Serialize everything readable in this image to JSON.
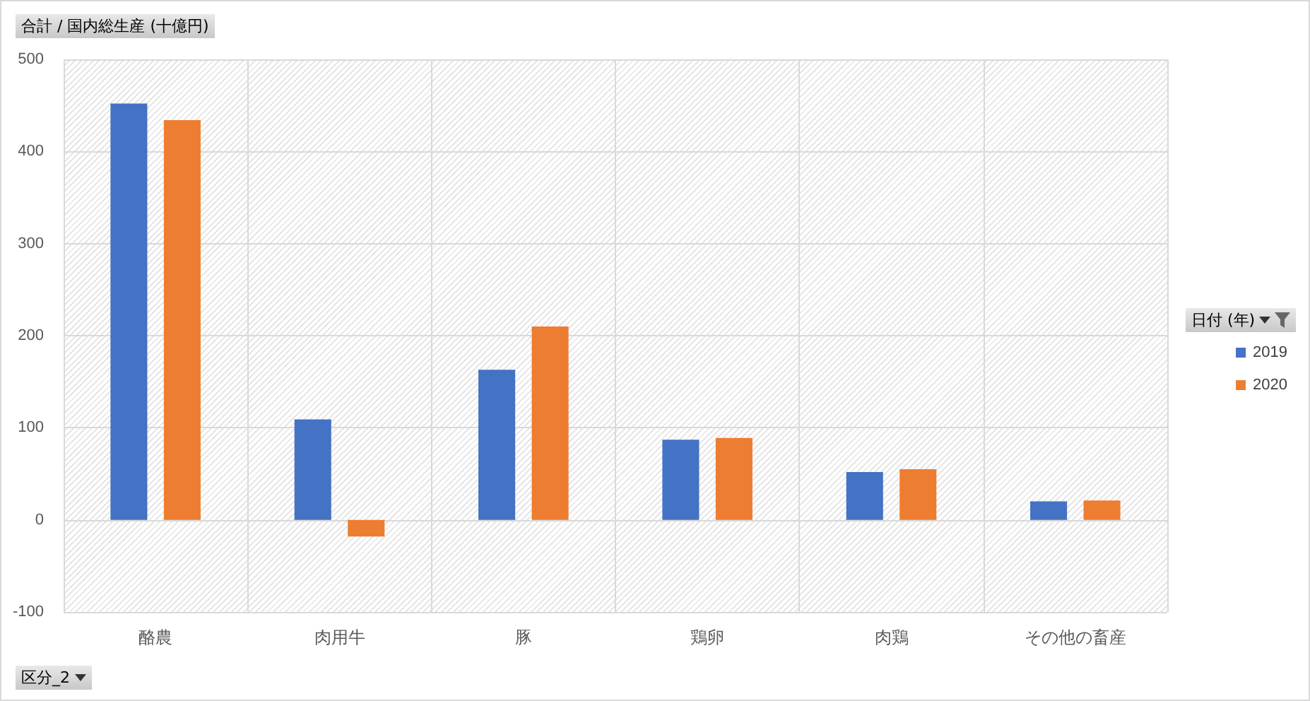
{
  "chart_data": {
    "type": "bar",
    "ylabel": "合計 / 国内総生産 (十億円)",
    "xlabel": "区分_2",
    "legend_title": "日付 (年)",
    "categories": [
      "酪農",
      "肉用牛",
      "豚",
      "鶏卵",
      "肉鶏",
      "その他の畜産"
    ],
    "series": [
      {
        "name": "2019",
        "color": "#4472c4",
        "values": [
          452,
          109,
          163,
          87,
          52,
          20
        ]
      },
      {
        "name": "2020",
        "color": "#ed7d31",
        "values": [
          434,
          -18,
          210,
          89,
          55,
          21
        ]
      }
    ],
    "ylim": [
      -100,
      500
    ],
    "yticks": [
      -100,
      0,
      100,
      200,
      300,
      400,
      500
    ],
    "grid": true,
    "legend": "right"
  }
}
